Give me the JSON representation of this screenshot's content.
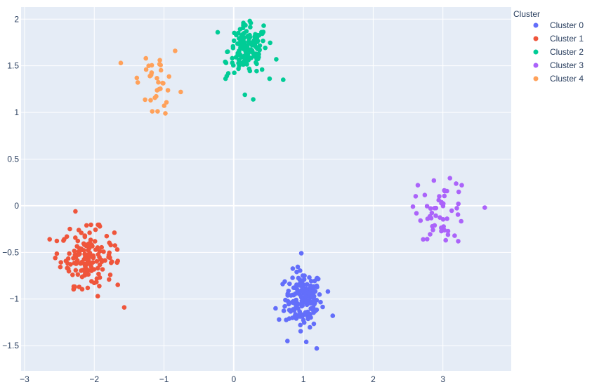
{
  "chart_data": {
    "type": "scatter",
    "title": "",
    "xlabel": "",
    "ylabel": "",
    "xlim": [
      -3.05,
      3.98
    ],
    "ylim": [
      -1.77,
      2.13
    ],
    "x_ticks": [
      -3,
      -2,
      -1,
      0,
      1,
      2,
      3
    ],
    "y_ticks": [
      -1.5,
      -1,
      -0.5,
      0,
      0.5,
      1,
      1.5,
      2
    ],
    "x_tick_labels": [
      "−3",
      "−2",
      "−1",
      "0",
      "1",
      "2",
      "3"
    ],
    "y_tick_labels": [
      "−1.5",
      "−1",
      "−0.5",
      "0",
      "0.5",
      "1",
      "1.5",
      "2"
    ],
    "grid": true,
    "plot_bgcolor": "#E5ECF6",
    "grid_color": "#ffffff",
    "legend": {
      "title": "Cluster",
      "position": "top-right outside"
    },
    "series": [
      {
        "name": "Cluster 0",
        "color": "#636EFA",
        "center": [
          1.0,
          -1.0
        ],
        "spread": [
          0.13,
          0.15
        ],
        "count": 170,
        "points": [
          [
            0.97,
            -0.51
          ],
          [
            1.19,
            -1.53
          ],
          [
            0.77,
            -1.45
          ],
          [
            1.42,
            -1.18
          ],
          [
            0.6,
            -1.1
          ],
          [
            0.65,
            -1.22
          ],
          [
            1.35,
            -0.92
          ],
          [
            1.04,
            -1.46
          ]
        ]
      },
      {
        "name": "Cluster 1",
        "color": "#EF553B",
        "center": [
          -2.1,
          -0.55
        ],
        "spread": [
          0.19,
          0.15
        ],
        "count": 160,
        "points": [
          [
            -2.27,
            -0.06
          ],
          [
            -2.64,
            -0.36
          ],
          [
            -1.57,
            -1.09
          ],
          [
            -2.56,
            -0.56
          ],
          [
            -2.28,
            -0.87
          ],
          [
            -1.95,
            -0.97
          ],
          [
            -1.67,
            -0.47
          ],
          [
            -2.35,
            -0.25
          ]
        ]
      },
      {
        "name": "Cluster 2",
        "color": "#00CC96",
        "center": [
          0.2,
          1.66
        ],
        "spread": [
          0.14,
          0.13
        ],
        "count": 150,
        "points": [
          [
            0.71,
            1.35
          ],
          [
            0.28,
            1.14
          ],
          [
            -0.23,
            1.86
          ],
          [
            0.23,
            1.98
          ],
          [
            0.43,
            1.93
          ],
          [
            -0.1,
            1.39
          ],
          [
            0.61,
            1.57
          ],
          [
            0.16,
            1.19
          ]
        ]
      },
      {
        "name": "Cluster 3",
        "color": "#AB63FA",
        "center": [
          3.0,
          -0.05
        ],
        "spread": [
          0.17,
          0.15
        ],
        "count": 55,
        "points": [
          [
            3.6,
            -0.02
          ],
          [
            2.57,
            -0.01
          ],
          [
            2.64,
            0.22
          ],
          [
            2.87,
            0.27
          ],
          [
            3.22,
            -0.38
          ],
          [
            3.27,
            0.22
          ],
          [
            3.04,
            -0.37
          ],
          [
            2.78,
            -0.14
          ]
        ]
      },
      {
        "name": "Cluster 4",
        "color": "#FFA15A",
        "center": [
          -1.1,
          1.31
        ],
        "spread": [
          0.12,
          0.13
        ],
        "count": 35,
        "points": [
          [
            -0.84,
            1.66
          ],
          [
            -1.62,
            1.53
          ],
          [
            -0.98,
            0.99
          ],
          [
            -1.26,
            1.58
          ],
          [
            -1.22,
            1.5
          ],
          [
            -0.76,
            1.22
          ],
          [
            -1.39,
            1.37
          ],
          [
            -1.06,
            1.56
          ]
        ]
      }
    ]
  }
}
